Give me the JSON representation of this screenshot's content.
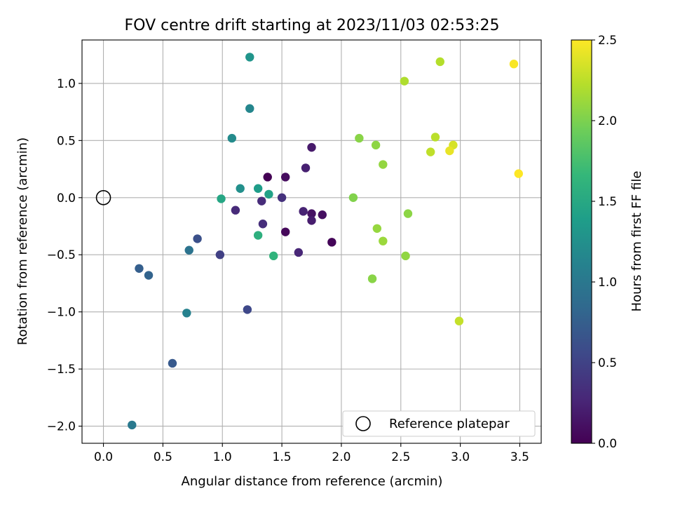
{
  "chart_data": {
    "type": "scatter",
    "title": "FOV centre drift starting at 2023/11/03 02:53:25",
    "xlabel": "Angular distance from reference (arcmin)",
    "ylabel": "Rotation from reference (arcmin)",
    "xlim": [
      -0.18,
      3.68
    ],
    "ylim": [
      -2.15,
      1.38
    ],
    "xticks": [
      0.0,
      0.5,
      1.0,
      1.5,
      2.0,
      2.5,
      3.0,
      3.5
    ],
    "xtick_labels": [
      "0.0",
      "0.5",
      "1.0",
      "1.5",
      "2.0",
      "2.5",
      "3.0",
      "3.5"
    ],
    "yticks": [
      -2.0,
      -1.5,
      -1.0,
      -0.5,
      0.0,
      0.5,
      1.0
    ],
    "ytick_labels": [
      "−2.0",
      "−1.5",
      "−1.0",
      "−0.5",
      "0.0",
      "0.5",
      "1.0"
    ],
    "grid": true,
    "legend_position": "lower-right",
    "legend_label": "Reference platepar",
    "reference_point": {
      "x": 0.0,
      "y": 0.0
    },
    "colormap": "viridis",
    "colormap_stops": [
      "#440154",
      "#482878",
      "#3e4989",
      "#31688e",
      "#26828e",
      "#1f9e89",
      "#35b779",
      "#6ece58",
      "#b5de2b",
      "#fde725"
    ],
    "colorbar": {
      "label": "Hours from first FF file",
      "range": [
        0.0,
        2.5
      ],
      "ticks": [
        0.0,
        0.5,
        1.0,
        1.5,
        2.0,
        2.5
      ],
      "tick_labels": [
        "0.0",
        "0.5",
        "1.0",
        "1.5",
        "2.0",
        "2.5"
      ]
    },
    "points": [
      {
        "x": 1.38,
        "y": 0.18,
        "hours": 0.0
      },
      {
        "x": 1.53,
        "y": -0.3,
        "hours": 0.05
      },
      {
        "x": 1.92,
        "y": -0.39,
        "hours": 0.03
      },
      {
        "x": 1.53,
        "y": 0.18,
        "hours": 0.08
      },
      {
        "x": 1.84,
        "y": -0.15,
        "hours": 0.1
      },
      {
        "x": 1.75,
        "y": -0.14,
        "hours": 0.12
      },
      {
        "x": 1.75,
        "y": 0.44,
        "hours": 0.18
      },
      {
        "x": 1.75,
        "y": -0.2,
        "hours": 0.2
      },
      {
        "x": 1.7,
        "y": 0.26,
        "hours": 0.22
      },
      {
        "x": 1.68,
        "y": -0.12,
        "hours": 0.24
      },
      {
        "x": 1.64,
        "y": -0.48,
        "hours": 0.27
      },
      {
        "x": 1.11,
        "y": -0.11,
        "hours": 0.3
      },
      {
        "x": 1.33,
        "y": -0.03,
        "hours": 0.31
      },
      {
        "x": 1.34,
        "y": -0.23,
        "hours": 0.33
      },
      {
        "x": 1.5,
        "y": 0.0,
        "hours": 0.35
      },
      {
        "x": 0.98,
        "y": -0.5,
        "hours": 0.48
      },
      {
        "x": 1.21,
        "y": -0.98,
        "hours": 0.55
      },
      {
        "x": 0.79,
        "y": -0.36,
        "hours": 0.62
      },
      {
        "x": 0.58,
        "y": -1.45,
        "hours": 0.7
      },
      {
        "x": 0.3,
        "y": -0.62,
        "hours": 0.75
      },
      {
        "x": 0.38,
        "y": -0.68,
        "hours": 0.8
      },
      {
        "x": 0.72,
        "y": -0.46,
        "hours": 0.95
      },
      {
        "x": 0.24,
        "y": -1.99,
        "hours": 1.02
      },
      {
        "x": 0.7,
        "y": -1.01,
        "hours": 1.1
      },
      {
        "x": 1.23,
        "y": 0.78,
        "hours": 1.15
      },
      {
        "x": 1.08,
        "y": 0.52,
        "hours": 1.2
      },
      {
        "x": 1.15,
        "y": 0.08,
        "hours": 1.25
      },
      {
        "x": 1.23,
        "y": 1.23,
        "hours": 1.3
      },
      {
        "x": 1.3,
        "y": 0.08,
        "hours": 1.38
      },
      {
        "x": 1.39,
        "y": 0.03,
        "hours": 1.43
      },
      {
        "x": 0.99,
        "y": -0.01,
        "hours": 1.48
      },
      {
        "x": 1.3,
        "y": -0.33,
        "hours": 1.58
      },
      {
        "x": 1.43,
        "y": -0.51,
        "hours": 1.62
      },
      {
        "x": 2.1,
        "y": 0.0,
        "hours": 2.02
      },
      {
        "x": 2.15,
        "y": 0.52,
        "hours": 2.05
      },
      {
        "x": 2.29,
        "y": 0.46,
        "hours": 2.07
      },
      {
        "x": 2.35,
        "y": 0.29,
        "hours": 2.09
      },
      {
        "x": 2.3,
        "y": -0.27,
        "hours": 2.1
      },
      {
        "x": 2.35,
        "y": -0.38,
        "hours": 2.12
      },
      {
        "x": 2.26,
        "y": -0.71,
        "hours": 2.05
      },
      {
        "x": 2.56,
        "y": -0.14,
        "hours": 2.06
      },
      {
        "x": 2.54,
        "y": -0.51,
        "hours": 2.08
      },
      {
        "x": 2.53,
        "y": 1.02,
        "hours": 2.2
      },
      {
        "x": 2.83,
        "y": 1.19,
        "hours": 2.22
      },
      {
        "x": 2.79,
        "y": 0.53,
        "hours": 2.24
      },
      {
        "x": 2.75,
        "y": 0.4,
        "hours": 2.26
      },
      {
        "x": 2.99,
        "y": -1.08,
        "hours": 2.28
      },
      {
        "x": 2.94,
        "y": 0.46,
        "hours": 2.35
      },
      {
        "x": 2.91,
        "y": 0.41,
        "hours": 2.42
      },
      {
        "x": 3.45,
        "y": 1.17,
        "hours": 2.48
      },
      {
        "x": 3.49,
        "y": 0.21,
        "hours": 2.5
      }
    ]
  }
}
